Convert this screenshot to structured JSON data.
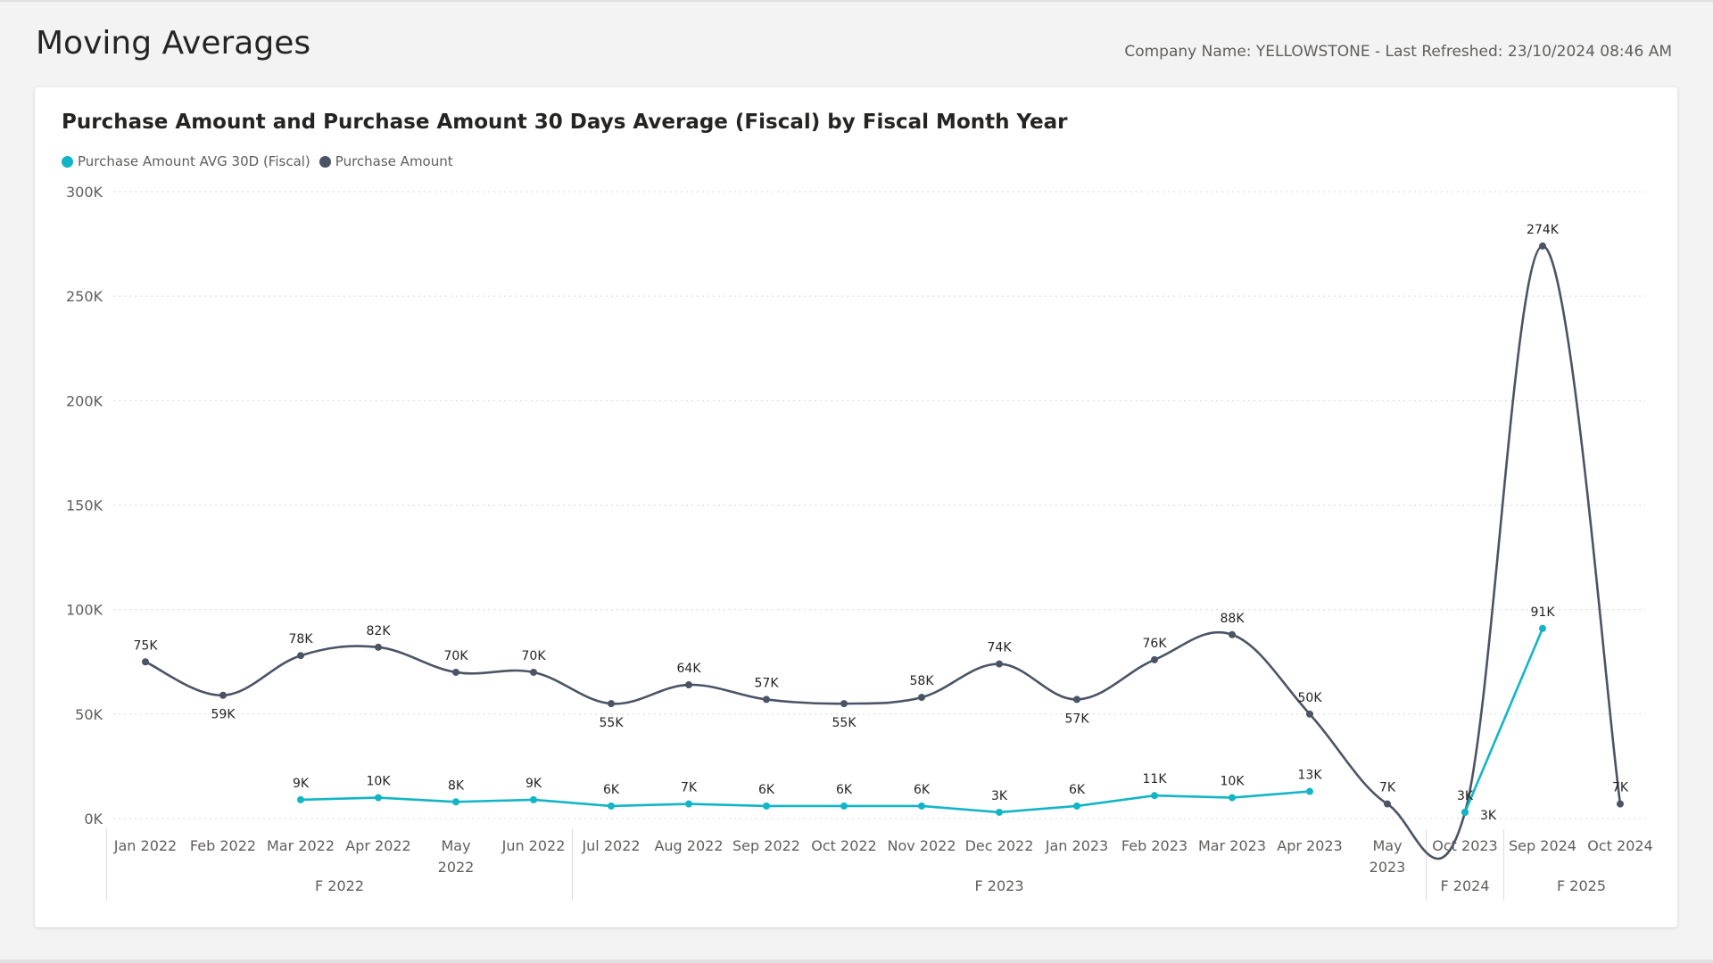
{
  "page": {
    "title": "Moving Averages",
    "subtitle": "Company Name: YELLOWSTONE - Last Refreshed: 23/10/2024 08:46 AM"
  },
  "colors": {
    "avg_series": "#12b5c6",
    "amount_series": "#4a5465",
    "grid": "#d8d8d8",
    "axis_text": "#605e5c"
  },
  "chart_data": {
    "type": "line",
    "title": "Purchase Amount and Purchase Amount 30 Days Average (Fiscal) by Fiscal Month Year",
    "xlabel": "",
    "ylabel": "",
    "ylim": [
      0,
      300000
    ],
    "y_ticks": [
      {
        "value": 0,
        "label": "0K"
      },
      {
        "value": 50000,
        "label": "50K"
      },
      {
        "value": 100000,
        "label": "100K"
      },
      {
        "value": 150000,
        "label": "150K"
      },
      {
        "value": 200000,
        "label": "200K"
      },
      {
        "value": 250000,
        "label": "250K"
      },
      {
        "value": 300000,
        "label": "300K"
      }
    ],
    "grid": true,
    "legend_position": "top-left",
    "categories": [
      [
        "Jan 2022"
      ],
      [
        "Feb 2022"
      ],
      [
        "Mar 2022"
      ],
      [
        "Apr 2022"
      ],
      [
        "May",
        "2022"
      ],
      [
        "Jun 2022"
      ],
      [
        "Jul 2022"
      ],
      [
        "Aug 2022"
      ],
      [
        "Sep 2022"
      ],
      [
        "Oct 2022"
      ],
      [
        "Nov 2022"
      ],
      [
        "Dec 2022"
      ],
      [
        "Jan 2023"
      ],
      [
        "Feb 2023"
      ],
      [
        "Mar 2023"
      ],
      [
        "Apr 2023"
      ],
      [
        "May",
        "2023"
      ],
      [
        "Oct 2023"
      ],
      [
        "Sep 2024"
      ],
      [
        "Oct 2024"
      ]
    ],
    "fiscal_groups": [
      {
        "label": "F 2022",
        "start": 0,
        "end": 5
      },
      {
        "label": "F 2023",
        "start": 6,
        "end": 16
      },
      {
        "label": "F 2024",
        "start": 17,
        "end": 17
      },
      {
        "label": "F 2025",
        "start": 18,
        "end": 19
      }
    ],
    "series": [
      {
        "name": "Purchase Amount AVG 30D (Fiscal)",
        "color": "#12b5c6",
        "values": [
          null,
          null,
          9000,
          10000,
          8000,
          9000,
          6000,
          7000,
          6000,
          6000,
          6000,
          3000,
          6000,
          11000,
          10000,
          13000,
          null,
          3000,
          91000,
          null
        ],
        "labels": [
          "",
          "",
          "9K",
          "10K",
          "8K",
          "9K",
          "6K",
          "7K",
          "6K",
          "6K",
          "6K",
          "3K",
          "6K",
          "11K",
          "10K",
          "13K",
          "",
          "3K",
          "91K",
          ""
        ],
        "label_pos": [
          "",
          "",
          "above",
          "above",
          "above",
          "above",
          "above",
          "above",
          "above",
          "above",
          "above",
          "above",
          "above",
          "above",
          "above",
          "above",
          "",
          "above",
          "above",
          ""
        ]
      },
      {
        "name": "Purchase Amount",
        "color": "#4a5465",
        "values": [
          75000,
          59000,
          78000,
          82000,
          70000,
          70000,
          55000,
          64000,
          57000,
          55000,
          58000,
          74000,
          57000,
          76000,
          88000,
          50000,
          7000,
          3000,
          274000,
          7000
        ],
        "labels": [
          "75K",
          "59K",
          "78K",
          "82K",
          "70K",
          "70K",
          "55K",
          "64K",
          "57K",
          "55K",
          "58K",
          "74K",
          "57K",
          "76K",
          "88K",
          "50K",
          "7K",
          "3K",
          "274K",
          "7K"
        ],
        "label_pos": [
          "above",
          "below",
          "above",
          "above",
          "above",
          "above",
          "below",
          "above",
          "above",
          "below",
          "above",
          "above",
          "below",
          "above",
          "above",
          "above",
          "above",
          "belowright",
          "above",
          "above"
        ]
      }
    ]
  }
}
